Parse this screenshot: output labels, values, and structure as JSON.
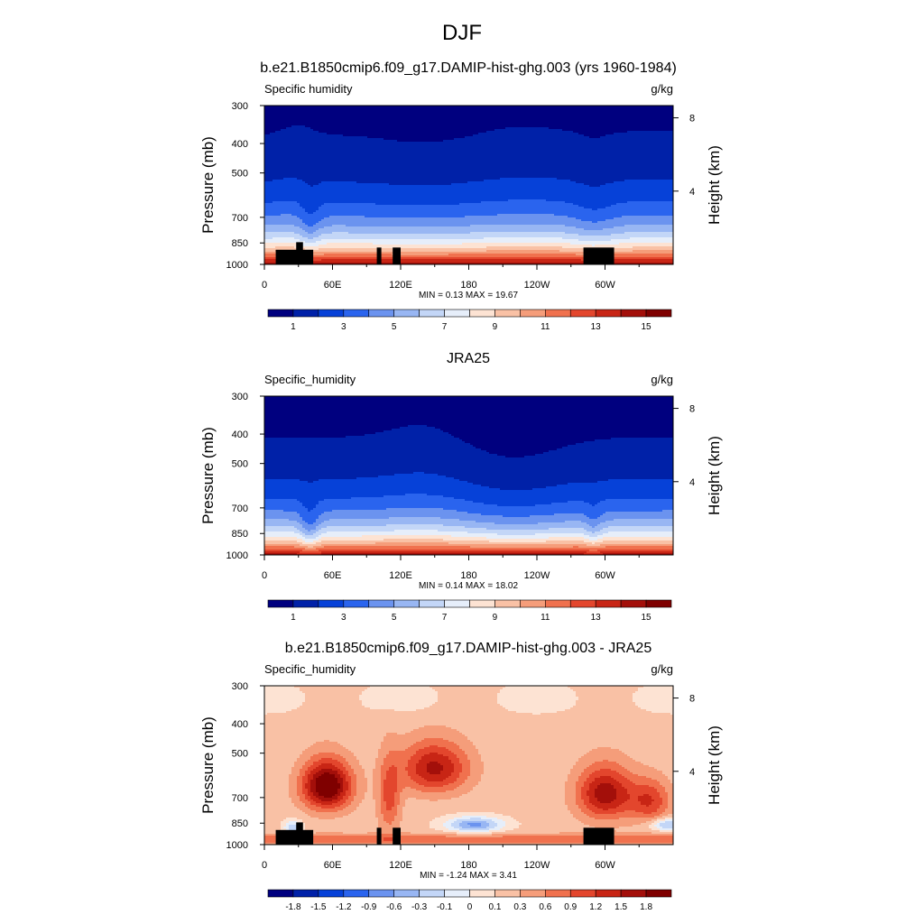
{
  "figure_title": "DJF",
  "chart_data": [
    {
      "type": "heatmap",
      "title": "b.e21.B1850cmip6.f09_g17.DAMIP-hist-ghg.003 (yrs 1960-1984)",
      "left_label": "Specific humidity",
      "units": "g/kg",
      "ylabel": "Pressure (mb)",
      "ylabel_right": "Height (km)",
      "x_ticks": [
        "0",
        "60E",
        "120E",
        "180",
        "120W",
        "60W"
      ],
      "x_tick_values": [
        0,
        60,
        120,
        180,
        240,
        300
      ],
      "xlim": [
        0,
        360
      ],
      "y_ticks": [
        "300",
        "400",
        "500",
        "700",
        "850",
        "1000"
      ],
      "y_tick_values": [
        300,
        400,
        500,
        700,
        850,
        1000
      ],
      "ylim": [
        1000,
        300
      ],
      "right_ticks": [
        "8",
        "4"
      ],
      "right_tick_values": [
        8,
        4
      ],
      "stats": "MIN =   0.13  MAX =  19.67",
      "colorbar_labels": [
        "1",
        "3",
        "5",
        "7",
        "9",
        "11",
        "13",
        "15"
      ],
      "colorbar_min": 0,
      "colorbar_max": 16,
      "field": "model",
      "masked": true
    },
    {
      "type": "heatmap",
      "title": "JRA25",
      "left_label": "Specific_humidity",
      "units": "g/kg",
      "ylabel": "Pressure (mb)",
      "ylabel_right": "Height (km)",
      "x_ticks": [
        "0",
        "60E",
        "120E",
        "180",
        "120W",
        "60W"
      ],
      "x_tick_values": [
        0,
        60,
        120,
        180,
        240,
        300
      ],
      "xlim": [
        0,
        360
      ],
      "y_ticks": [
        "300",
        "400",
        "500",
        "700",
        "850",
        "1000"
      ],
      "y_tick_values": [
        300,
        400,
        500,
        700,
        850,
        1000
      ],
      "ylim": [
        1000,
        300
      ],
      "right_ticks": [
        "8",
        "4"
      ],
      "right_tick_values": [
        8,
        4
      ],
      "stats": "MIN =   0.14  MAX =  18.02",
      "colorbar_labels": [
        "1",
        "3",
        "5",
        "7",
        "9",
        "11",
        "13",
        "15"
      ],
      "colorbar_min": 0,
      "colorbar_max": 16,
      "field": "obs",
      "masked": false
    },
    {
      "type": "heatmap",
      "title": "b.e21.B1850cmip6.f09_g17.DAMIP-hist-ghg.003 - JRA25",
      "left_label": "Specific_humidity",
      "units": "g/kg",
      "ylabel": "Pressure (mb)",
      "ylabel_right": "Height (km)",
      "x_ticks": [
        "0",
        "60E",
        "120E",
        "180",
        "120W",
        "60W"
      ],
      "x_tick_values": [
        0,
        60,
        120,
        180,
        240,
        300
      ],
      "xlim": [
        0,
        360
      ],
      "y_ticks": [
        "300",
        "400",
        "500",
        "700",
        "850",
        "1000"
      ],
      "y_tick_values": [
        300,
        400,
        500,
        700,
        850,
        1000
      ],
      "ylim": [
        1000,
        300
      ],
      "right_ticks": [
        "8",
        "4"
      ],
      "right_tick_values": [
        8,
        4
      ],
      "stats": "MIN =  -1.24  MAX =   3.41",
      "colorbar_labels": [
        "-1.8",
        "-1.5",
        "-1.2",
        "-0.9",
        "-0.6",
        "-0.3",
        "-0.1",
        "0",
        "0.1",
        "0.3",
        "0.6",
        "0.9",
        "1.2",
        "1.5",
        "1.8"
      ],
      "colorbar_min": -2.1,
      "colorbar_max": 2.1,
      "field": "diff",
      "masked": true
    }
  ],
  "colors": {
    "palette": [
      "#00007f",
      "#0021a8",
      "#0641d8",
      "#2a64ee",
      "#6b93ef",
      "#98b6f3",
      "#c3d6f7",
      "#e6eefa",
      "#fde3d3",
      "#f9c1a5",
      "#f59d7a",
      "#f0714e",
      "#e3462d",
      "#c82515",
      "#a30f0a",
      "#7f0000"
    ],
    "mask": "#000000"
  }
}
